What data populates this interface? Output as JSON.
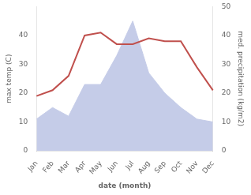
{
  "chart_data": {
    "type": "line",
    "categories": [
      "Jan",
      "Feb",
      "Mar",
      "Apr",
      "May",
      "Jun",
      "Jul",
      "Aug",
      "Sep",
      "Oct",
      "Nov",
      "Dec"
    ],
    "series": [
      {
        "type": "line",
        "color": "#c0504d",
        "values": [
          19,
          21,
          26,
          40,
          41,
          37,
          37,
          39,
          38,
          38,
          29,
          21
        ]
      },
      {
        "type": "area",
        "color": "#c5cce8",
        "axis": "y2",
        "values": [
          11,
          15,
          12,
          23,
          23,
          33,
          45,
          27,
          20,
          15,
          11,
          10
        ]
      }
    ],
    "xlabel": "date (month)",
    "ylabel": "max temp (C)",
    "y2label": "med. precipitation (kg/m2)",
    "ylim": [
      0,
      50
    ],
    "yticks": [
      0,
      10,
      20,
      30,
      40
    ],
    "y2lim": [
      0,
      50
    ],
    "y2ticks": [
      0,
      10,
      20,
      30,
      40,
      50
    ],
    "grid": false
  }
}
